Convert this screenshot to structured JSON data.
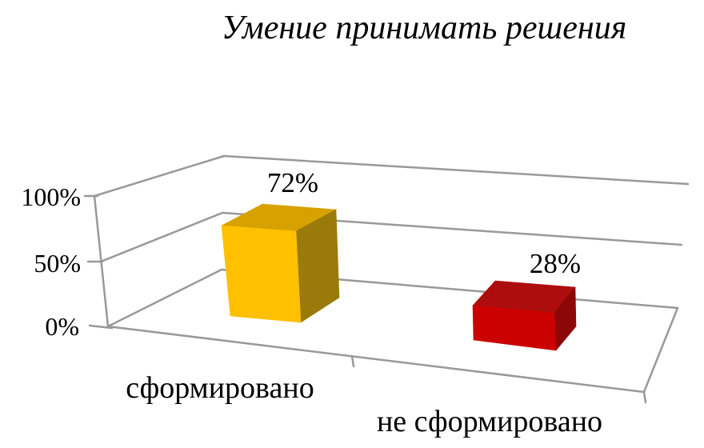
{
  "chart_data": {
    "type": "bar",
    "projection": "3d-perspective",
    "title": "Умение принимать решения",
    "categories": [
      "сформировано",
      "не сформировано"
    ],
    "values": [
      72,
      28
    ],
    "data_labels": [
      "72%",
      "28%"
    ],
    "yticks": [
      "0%",
      "50%",
      "100%"
    ],
    "ylim": [
      0,
      100
    ],
    "xlabel": "",
    "ylabel": "",
    "legend": "none",
    "grid": true,
    "grid_levels_pct": [
      0,
      50,
      100
    ]
  },
  "colors": {
    "background": "#FFFFFF",
    "gridline": "#999999",
    "text": "#000000",
    "bar1_front": "#FFC000",
    "bar1_top": "#D7A100",
    "bar1_side": "#9A7A08",
    "bar2_front": "#CB0000",
    "bar2_top": "#AE0D0D",
    "bar2_side": "#8C0808"
  }
}
